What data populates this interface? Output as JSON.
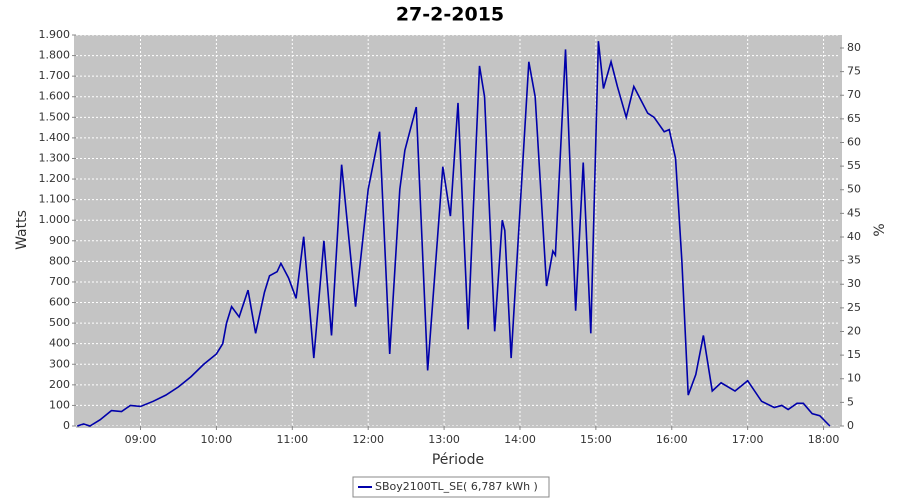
{
  "chart_data": {
    "type": "line",
    "title": "27-2-2015",
    "xlabel": "Période",
    "ylabel": "Watts",
    "y2label": "%",
    "x": [
      "08:10",
      "08:15",
      "08:20",
      "08:28",
      "08:37",
      "08:45",
      "08:52",
      "09:00",
      "09:10",
      "09:20",
      "09:30",
      "09:40",
      "09:50",
      "10:00",
      "10:05",
      "10:08",
      "10:12",
      "10:18",
      "10:25",
      "10:31",
      "10:38",
      "10:42",
      "10:48",
      "10:51",
      "10:57",
      "11:03",
      "11:09",
      "11:17",
      "11:25",
      "11:31",
      "11:39",
      "11:50",
      "12:00",
      "12:09",
      "12:17",
      "12:25",
      "12:29",
      "12:38",
      "12:47",
      "12:59",
      "13:05",
      "13:11",
      "13:19",
      "13:28",
      "13:32",
      "13:40",
      "13:46",
      "13:48",
      "13:53",
      "14:07",
      "14:12",
      "14:21",
      "14:26",
      "14:28",
      "14:36",
      "14:44",
      "14:50",
      "14:56",
      "15:02",
      "15:06",
      "15:12",
      "15:17",
      "15:24",
      "15:30",
      "15:41",
      "15:46",
      "15:54",
      "15:58",
      "16:03",
      "16:08",
      "16:13",
      "16:19",
      "16:25",
      "16:32",
      "16:39",
      "16:50",
      "17:00",
      "17:11",
      "17:21",
      "17:27",
      "17:32",
      "17:39",
      "17:44",
      "17:51",
      "17:57",
      "18:05"
    ],
    "series": [
      {
        "name": "SBoy2100TL_SE( 6,787 kWh )",
        "color": "#0000aa",
        "values": [
          0,
          10,
          0,
          30,
          75,
          70,
          100,
          95,
          120,
          150,
          190,
          240,
          300,
          350,
          400,
          500,
          580,
          530,
          660,
          450,
          650,
          730,
          750,
          790,
          720,
          620,
          920,
          330,
          900,
          440,
          1270,
          580,
          1150,
          1430,
          350,
          1150,
          1340,
          1550,
          270,
          1260,
          1020,
          1570,
          470,
          1750,
          1600,
          460,
          1000,
          950,
          330,
          1770,
          1600,
          680,
          850,
          830,
          1830,
          560,
          1280,
          450,
          1870,
          1640,
          1770,
          1650,
          1500,
          1650,
          1520,
          1500,
          1430,
          1440,
          1300,
          800,
          150,
          250,
          440,
          170,
          210,
          170,
          220,
          120,
          90,
          100,
          80,
          110,
          110,
          60,
          50,
          0
        ]
      }
    ],
    "xlim": [
      "08:09",
      "18:13"
    ],
    "xticks": [
      "09:00",
      "10:00",
      "11:00",
      "12:00",
      "13:00",
      "14:00",
      "15:00",
      "16:00",
      "17:00",
      "18:00"
    ],
    "ylim": [
      0,
      1900
    ],
    "yticks": [
      0,
      100,
      200,
      300,
      400,
      500,
      600,
      700,
      800,
      900,
      {
        "value": 1000,
        "label": "1.000"
      },
      {
        "value": 1100,
        "label": "1.100"
      },
      {
        "value": 1200,
        "label": "1.200"
      },
      {
        "value": 1300,
        "label": "1.300"
      },
      {
        "value": 1400,
        "label": "1.400"
      },
      {
        "value": 1500,
        "label": "1.500"
      },
      {
        "value": 1600,
        "label": "1.600"
      },
      {
        "value": 1700,
        "label": "1.700"
      },
      {
        "value": 1800,
        "label": "1.800"
      },
      {
        "value": 1900,
        "label": "1.900"
      }
    ],
    "y2lim": [
      0,
      82.75
    ],
    "y2ticks": [
      0,
      5,
      10,
      15,
      20,
      25,
      30,
      35,
      40,
      45,
      50,
      55,
      60,
      65,
      70,
      75,
      80
    ],
    "grid": true,
    "legend": "bottom"
  }
}
